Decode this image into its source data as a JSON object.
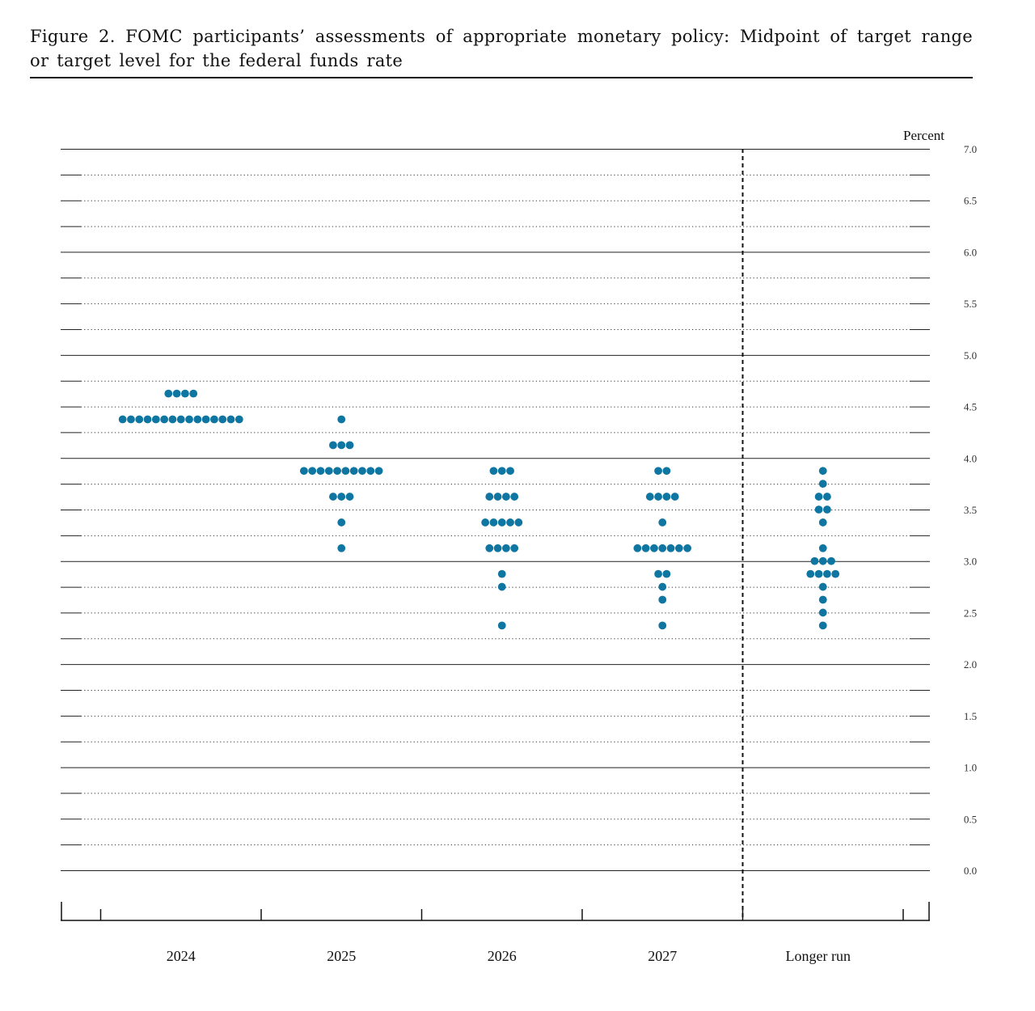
{
  "figure": {
    "title": "Figure 2.  FOMC participants’ assessments of appropriate monetary policy:  Midpoint of target range or target level for the federal funds rate"
  },
  "chart_data": {
    "type": "scatter",
    "title": "Figure 2.  FOMC participants’ assessments of appropriate monetary policy:  Midpoint of target range or target level for the federal funds rate",
    "ylabel": "Percent",
    "ylim": [
      0.0,
      7.0
    ],
    "yticks": [
      "7.0",
      "6.5",
      "6.0",
      "5.5",
      "5.0",
      "4.5",
      "4.0",
      "3.5",
      "3.0",
      "2.5",
      "2.0",
      "1.5",
      "1.0",
      "0.5",
      "0.0"
    ],
    "categories": [
      "2024",
      "2025",
      "2026",
      "2027",
      "Longer run"
    ],
    "dot_color": "#0f76a1",
    "columns": [
      {
        "label": "2024",
        "dots": [
          {
            "rate": 4.625,
            "count": 4
          },
          {
            "rate": 4.375,
            "count": 15
          }
        ]
      },
      {
        "label": "2025",
        "dots": [
          {
            "rate": 4.375,
            "count": 1
          },
          {
            "rate": 4.125,
            "count": 3
          },
          {
            "rate": 3.875,
            "count": 10
          },
          {
            "rate": 3.625,
            "count": 3
          },
          {
            "rate": 3.375,
            "count": 1
          },
          {
            "rate": 3.125,
            "count": 1
          }
        ]
      },
      {
        "label": "2026",
        "dots": [
          {
            "rate": 3.875,
            "count": 3
          },
          {
            "rate": 3.625,
            "count": 4
          },
          {
            "rate": 3.375,
            "count": 5
          },
          {
            "rate": 3.125,
            "count": 4
          },
          {
            "rate": 2.875,
            "count": 1
          },
          {
            "rate": 2.75,
            "count": 1
          },
          {
            "rate": 2.375,
            "count": 1
          }
        ]
      },
      {
        "label": "2027",
        "dots": [
          {
            "rate": 3.875,
            "count": 2
          },
          {
            "rate": 3.625,
            "count": 4
          },
          {
            "rate": 3.375,
            "count": 1
          },
          {
            "rate": 3.125,
            "count": 7
          },
          {
            "rate": 2.875,
            "count": 2
          },
          {
            "rate": 2.75,
            "count": 1
          },
          {
            "rate": 2.625,
            "count": 1
          },
          {
            "rate": 2.375,
            "count": 1
          }
        ]
      },
      {
        "label": "Longer run",
        "dots": [
          {
            "rate": 3.875,
            "count": 1
          },
          {
            "rate": 3.75,
            "count": 1
          },
          {
            "rate": 3.625,
            "count": 2
          },
          {
            "rate": 3.5,
            "count": 2
          },
          {
            "rate": 3.375,
            "count": 1
          },
          {
            "rate": 3.125,
            "count": 1
          },
          {
            "rate": 3.0,
            "count": 3
          },
          {
            "rate": 2.875,
            "count": 4
          },
          {
            "rate": 2.75,
            "count": 1
          },
          {
            "rate": 2.625,
            "count": 1
          },
          {
            "rate": 2.5,
            "count": 1
          },
          {
            "rate": 2.375,
            "count": 1
          }
        ]
      }
    ]
  }
}
